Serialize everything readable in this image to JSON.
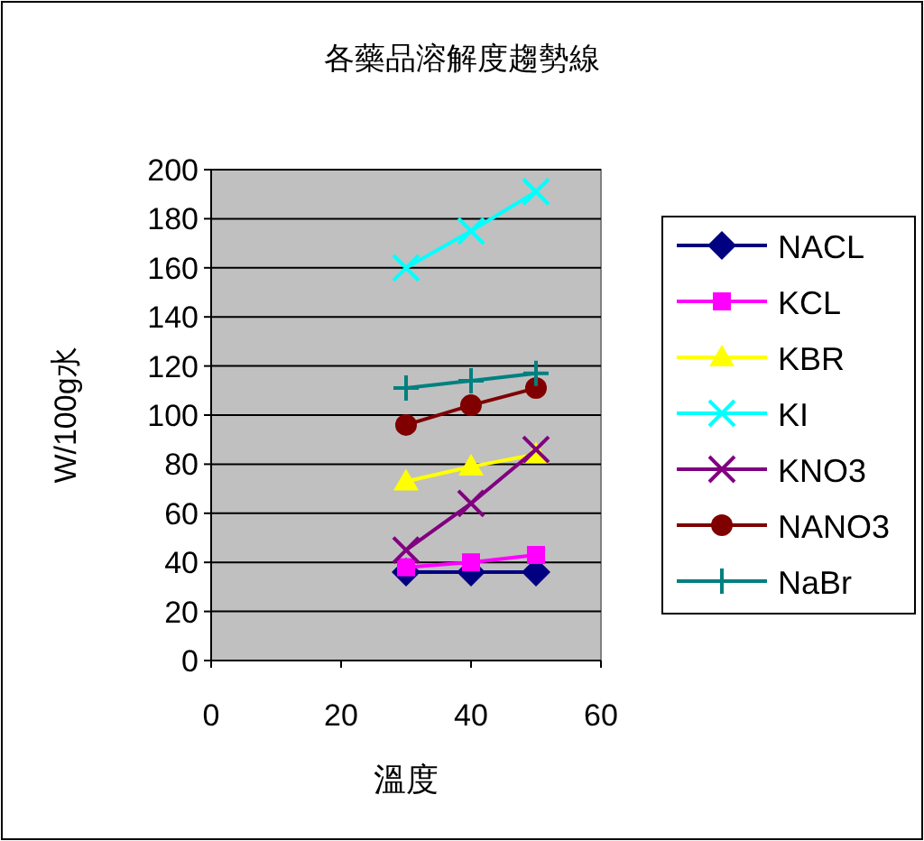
{
  "chart_data": {
    "type": "line",
    "title": "各藥品溶解度趨勢線",
    "xlabel": "溫度",
    "ylabel": "W/100g水",
    "x": [
      30,
      40,
      50
    ],
    "xlim": [
      0,
      60
    ],
    "xticks": [
      0,
      20,
      40,
      60
    ],
    "ylim": [
      0,
      200
    ],
    "yticks": [
      0,
      20,
      40,
      60,
      80,
      100,
      120,
      140,
      160,
      180,
      200
    ],
    "grid": "y",
    "legend": "right",
    "series": [
      {
        "name": "NACL",
        "color": "#000080",
        "marker": "diamond",
        "values": [
          36,
          36,
          36
        ]
      },
      {
        "name": "KCL",
        "color": "#ff00ff",
        "marker": "square",
        "values": [
          38,
          40,
          43
        ]
      },
      {
        "name": "KBR",
        "color": "#ffff00",
        "marker": "triangle",
        "values": [
          73,
          79,
          84
        ]
      },
      {
        "name": "KI",
        "color": "#00ffff",
        "marker": "cross",
        "values": [
          160,
          175,
          191
        ]
      },
      {
        "name": "KNO3",
        "color": "#800080",
        "marker": "cross",
        "values": [
          45,
          64,
          86
        ]
      },
      {
        "name": "NANO3",
        "color": "#800000",
        "marker": "circle",
        "values": [
          96,
          104,
          111
        ]
      },
      {
        "name": "NaBr",
        "color": "#008080",
        "marker": "plus",
        "values": [
          111,
          114,
          117
        ]
      }
    ]
  }
}
